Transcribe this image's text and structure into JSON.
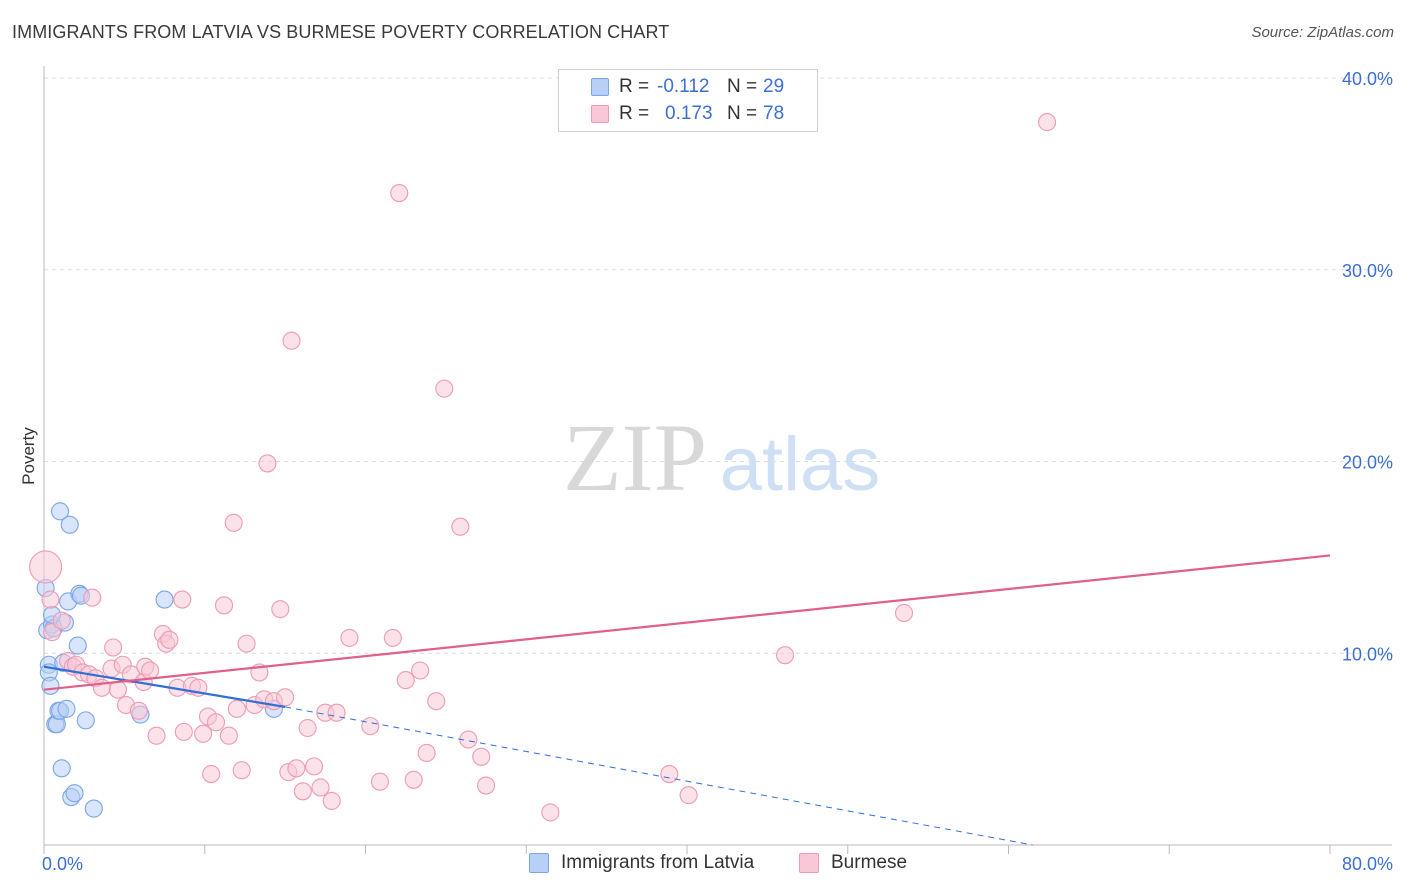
{
  "header": {
    "title": "IMMIGRANTS FROM LATVIA VS BURMESE POVERTY CORRELATION CHART",
    "source": "Source: ZipAtlas.com"
  },
  "watermark": {
    "zip": "ZIP",
    "atlas": "atlas"
  },
  "legend_top": {
    "series": [
      {
        "r_label": "R =",
        "r_value": "-0.112",
        "n_label": "N =",
        "n_value": "29",
        "color": "#7aa6e8",
        "fill": "#b8d0f5"
      },
      {
        "r_label": "R =",
        "r_value": "0.173",
        "n_label": "N =",
        "n_value": "78",
        "color": "#ee9ab5",
        "fill": "#f8c8d6"
      }
    ]
  },
  "legend_bottom": {
    "items": [
      {
        "label": "Immigrants from Latvia",
        "color": "#7aa6e8",
        "fill": "#b8d0f5"
      },
      {
        "label": "Burmese",
        "color": "#ee9ab5",
        "fill": "#f8c8d6"
      }
    ]
  },
  "chart_data": {
    "type": "scatter",
    "title": "IMMIGRANTS FROM LATVIA VS BURMESE POVERTY CORRELATION CHART",
    "xlabel": "",
    "ylabel": "Poverty",
    "xlim": [
      0,
      80
    ],
    "ylim": [
      0,
      40
    ],
    "x_tick_labels": [
      {
        "value": 0,
        "label": "0.0%"
      },
      {
        "value": 80,
        "label": "80.0%"
      }
    ],
    "y_tick_labels": [
      {
        "value": 10,
        "label": "10.0%"
      },
      {
        "value": 20,
        "label": "20.0%"
      },
      {
        "value": 30,
        "label": "30.0%"
      },
      {
        "value": 40,
        "label": "40.0%"
      }
    ],
    "grid": true,
    "series": [
      {
        "name": "Immigrants from Latvia",
        "color": "#7aa6e8",
        "fill": "#b8d0f5",
        "trend_color": "#2f6fd6",
        "points": [
          [
            0.1,
            13.4
          ],
          [
            0.2,
            11.2
          ],
          [
            0.3,
            9.4
          ],
          [
            0.3,
            9.0
          ],
          [
            0.4,
            8.3
          ],
          [
            0.5,
            11.5
          ],
          [
            0.6,
            11.3
          ],
          [
            0.7,
            6.3
          ],
          [
            0.8,
            6.3
          ],
          [
            0.9,
            7.0
          ],
          [
            1.0,
            17.4
          ],
          [
            1.0,
            7.0
          ],
          [
            1.1,
            4.0
          ],
          [
            1.2,
            9.5
          ],
          [
            1.3,
            11.6
          ],
          [
            1.4,
            7.1
          ],
          [
            1.5,
            12.7
          ],
          [
            1.6,
            16.7
          ],
          [
            1.7,
            2.5
          ],
          [
            1.9,
            2.7
          ],
          [
            2.1,
            10.4
          ],
          [
            2.2,
            13.1
          ],
          [
            2.3,
            13.0
          ],
          [
            2.6,
            6.5
          ],
          [
            3.1,
            1.9
          ],
          [
            6.0,
            6.8
          ],
          [
            7.5,
            12.8
          ],
          [
            14.3,
            7.1
          ],
          [
            0.5,
            12.0
          ]
        ],
        "trend": {
          "x": [
            0,
            15
          ],
          "y": [
            9.3,
            7.2
          ],
          "dashed_to": [
            61.5,
            0
          ]
        }
      },
      {
        "name": "Burmese",
        "color": "#ee9ab5",
        "fill": "#f8c8d6",
        "trend_color": "#e0608a",
        "points": [
          [
            0.1,
            14.5
          ],
          [
            0.4,
            12.8
          ],
          [
            0.5,
            11.1
          ],
          [
            1.1,
            11.7
          ],
          [
            1.5,
            9.6
          ],
          [
            1.8,
            9.3
          ],
          [
            2.0,
            9.4
          ],
          [
            2.4,
            9.0
          ],
          [
            2.8,
            8.9
          ],
          [
            3.0,
            12.9
          ],
          [
            3.2,
            8.7
          ],
          [
            3.6,
            8.2
          ],
          [
            4.2,
            9.2
          ],
          [
            4.3,
            10.3
          ],
          [
            4.6,
            8.1
          ],
          [
            4.9,
            9.4
          ],
          [
            5.1,
            7.3
          ],
          [
            5.4,
            8.9
          ],
          [
            5.9,
            7.0
          ],
          [
            6.2,
            8.5
          ],
          [
            6.3,
            9.3
          ],
          [
            6.6,
            9.1
          ],
          [
            7.0,
            5.7
          ],
          [
            7.4,
            11.0
          ],
          [
            7.6,
            10.5
          ],
          [
            7.8,
            10.7
          ],
          [
            8.3,
            8.2
          ],
          [
            8.6,
            12.8
          ],
          [
            8.7,
            5.9
          ],
          [
            9.2,
            8.3
          ],
          [
            9.6,
            8.2
          ],
          [
            9.9,
            5.8
          ],
          [
            10.2,
            6.7
          ],
          [
            10.4,
            3.7
          ],
          [
            10.7,
            6.4
          ],
          [
            11.2,
            12.5
          ],
          [
            11.5,
            5.7
          ],
          [
            11.8,
            16.8
          ],
          [
            12.0,
            7.1
          ],
          [
            12.3,
            3.9
          ],
          [
            12.6,
            10.5
          ],
          [
            13.1,
            7.3
          ],
          [
            13.4,
            9.0
          ],
          [
            13.7,
            7.6
          ],
          [
            13.9,
            19.9
          ],
          [
            14.3,
            7.5
          ],
          [
            14.7,
            12.3
          ],
          [
            15.0,
            7.7
          ],
          [
            15.2,
            3.8
          ],
          [
            15.4,
            26.3
          ],
          [
            15.7,
            4.0
          ],
          [
            16.1,
            2.8
          ],
          [
            16.4,
            6.1
          ],
          [
            16.8,
            4.1
          ],
          [
            17.2,
            3.0
          ],
          [
            17.5,
            6.9
          ],
          [
            17.9,
            2.3
          ],
          [
            18.2,
            6.9
          ],
          [
            19.0,
            10.8
          ],
          [
            20.3,
            6.2
          ],
          [
            20.9,
            3.3
          ],
          [
            21.7,
            10.8
          ],
          [
            22.1,
            34.0
          ],
          [
            22.5,
            8.6
          ],
          [
            23.0,
            3.4
          ],
          [
            23.4,
            9.1
          ],
          [
            23.8,
            4.8
          ],
          [
            24.4,
            7.5
          ],
          [
            24.9,
            23.8
          ],
          [
            25.9,
            16.6
          ],
          [
            26.4,
            5.5
          ],
          [
            27.2,
            4.6
          ],
          [
            27.5,
            3.1
          ],
          [
            31.5,
            1.7
          ],
          [
            38.9,
            3.7
          ],
          [
            40.1,
            2.6
          ],
          [
            46.1,
            9.9
          ],
          [
            53.5,
            12.1
          ],
          [
            62.4,
            37.7
          ]
        ],
        "trend": {
          "x": [
            0,
            80
          ],
          "y": [
            8.1,
            15.1
          ]
        }
      }
    ]
  }
}
